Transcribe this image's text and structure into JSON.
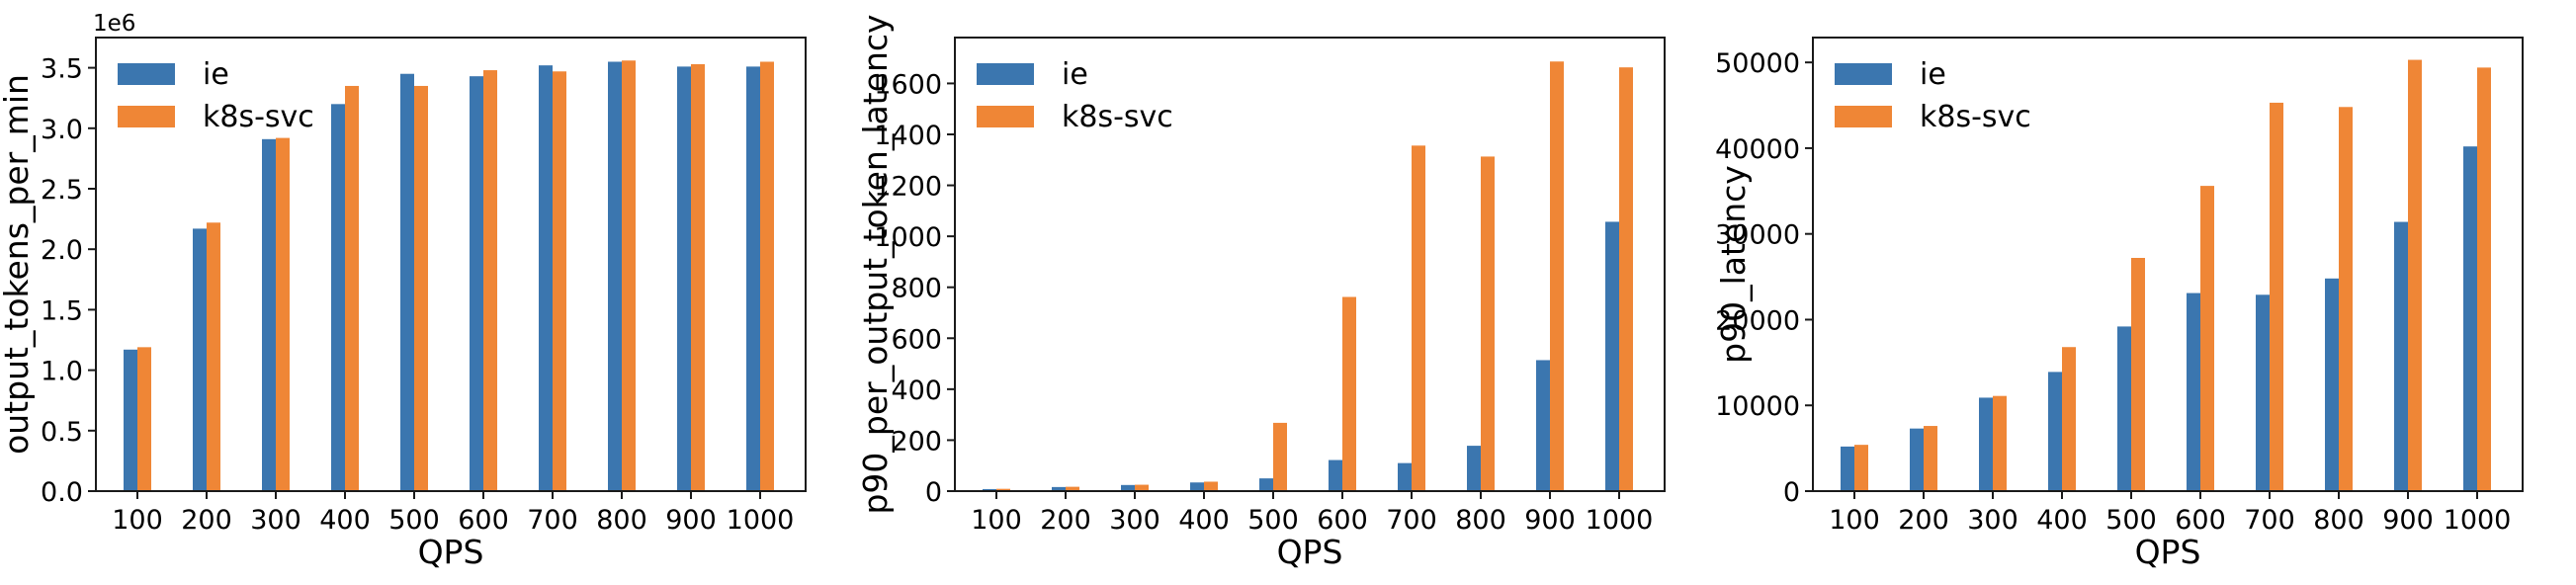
{
  "figure": {
    "background": "#ffffff",
    "spine_color": "#1a1a1a",
    "text_color": "#000000",
    "series_colors": {
      "ie": "#3b76af",
      "k8s-svc": "#ef8636"
    }
  },
  "chart_data": [
    {
      "type": "bar",
      "title": "",
      "xlabel": "QPS",
      "ylabel": "output_tokens_per_min",
      "offset_text": "1e6",
      "unit_multiplier": 1000000,
      "grid": false,
      "legend_position": "upper-left",
      "categories": [
        100,
        200,
        300,
        400,
        500,
        600,
        700,
        800,
        900,
        1000
      ],
      "x_tick_labels": [
        "100",
        "200",
        "300",
        "400",
        "500",
        "600",
        "700",
        "800",
        "900",
        "1000"
      ],
      "series": [
        {
          "name": "ie",
          "color": "#3b76af",
          "values": [
            1.17,
            2.17,
            2.91,
            3.2,
            3.45,
            3.43,
            3.52,
            3.55,
            3.51,
            3.51
          ]
        },
        {
          "name": "k8s-svc",
          "color": "#ef8636",
          "values": [
            1.19,
            2.22,
            2.92,
            3.35,
            3.35,
            3.48,
            3.47,
            3.56,
            3.53,
            3.55
          ]
        }
      ],
      "y_ticks": [
        0.0,
        0.5,
        1.0,
        1.5,
        2.0,
        2.5,
        3.0,
        3.5
      ],
      "y_tick_labels": [
        "0.0",
        "0.5",
        "1.0",
        "1.5",
        "2.0",
        "2.5",
        "3.0",
        "3.5"
      ],
      "ylim": [
        0,
        3.75
      ]
    },
    {
      "type": "bar",
      "title": "",
      "xlabel": "QPS",
      "ylabel": "p90_per_output_token_latency",
      "offset_text": "",
      "unit_multiplier": 1,
      "grid": false,
      "legend_position": "upper-left",
      "categories": [
        100,
        200,
        300,
        400,
        500,
        600,
        700,
        800,
        900,
        1000
      ],
      "x_tick_labels": [
        "100",
        "200",
        "300",
        "400",
        "500",
        "600",
        "700",
        "800",
        "900",
        "1000"
      ],
      "series": [
        {
          "name": "ie",
          "color": "#3b76af",
          "values": [
            8,
            16,
            24,
            34,
            50,
            122,
            110,
            178,
            514,
            1057
          ]
        },
        {
          "name": "k8s-svc",
          "color": "#ef8636",
          "values": [
            9,
            17,
            25,
            37,
            268,
            762,
            1356,
            1313,
            1686,
            1663
          ]
        }
      ],
      "y_ticks": [
        0,
        200,
        400,
        600,
        800,
        1000,
        1200,
        1400,
        1600
      ],
      "y_tick_labels": [
        "0",
        "200",
        "400",
        "600",
        "800",
        "1000",
        "1200",
        "1400",
        "1600"
      ],
      "ylim": [
        0,
        1780
      ]
    },
    {
      "type": "bar",
      "title": "",
      "xlabel": "QPS",
      "ylabel": "p90_latency",
      "offset_text": "",
      "unit_multiplier": 1,
      "grid": false,
      "legend_position": "upper-left",
      "categories": [
        100,
        200,
        300,
        400,
        500,
        600,
        700,
        800,
        900,
        1000
      ],
      "x_tick_labels": [
        "100",
        "200",
        "300",
        "400",
        "500",
        "600",
        "700",
        "800",
        "900",
        "1000"
      ],
      "series": [
        {
          "name": "ie",
          "color": "#3b76af",
          "values": [
            5200,
            7300,
            10900,
            13900,
            19200,
            23100,
            22900,
            24800,
            31400,
            40200
          ]
        },
        {
          "name": "k8s-svc",
          "color": "#ef8636",
          "values": [
            5400,
            7600,
            11100,
            16800,
            27200,
            35600,
            45300,
            44800,
            50300,
            49400
          ]
        }
      ],
      "y_ticks": [
        0,
        10000,
        20000,
        30000,
        40000,
        50000
      ],
      "y_tick_labels": [
        "0",
        "10000",
        "20000",
        "30000",
        "40000",
        "50000"
      ],
      "ylim": [
        0,
        52900
      ]
    }
  ]
}
